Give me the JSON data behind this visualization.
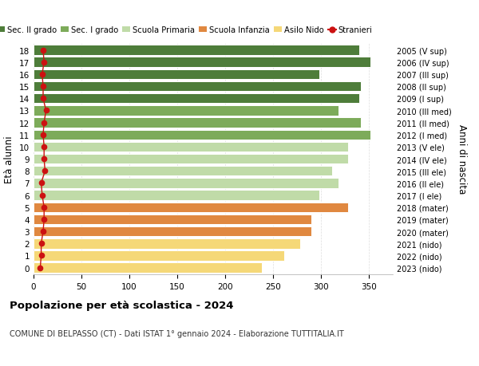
{
  "ages": [
    18,
    17,
    16,
    15,
    14,
    13,
    12,
    11,
    10,
    9,
    8,
    7,
    6,
    5,
    4,
    3,
    2,
    1,
    0
  ],
  "years": [
    "2005 (V sup)",
    "2006 (IV sup)",
    "2007 (III sup)",
    "2008 (II sup)",
    "2009 (I sup)",
    "2010 (III med)",
    "2011 (II med)",
    "2012 (I med)",
    "2013 (V ele)",
    "2014 (IV ele)",
    "2015 (III ele)",
    "2016 (II ele)",
    "2017 (I ele)",
    "2018 (mater)",
    "2019 (mater)",
    "2020 (mater)",
    "2021 (nido)",
    "2022 (nido)",
    "2023 (nido)"
  ],
  "values": [
    340,
    352,
    298,
    342,
    340,
    318,
    342,
    352,
    328,
    328,
    312,
    318,
    298,
    328,
    290,
    290,
    278,
    262,
    238
  ],
  "stranieri": [
    10,
    11,
    9,
    10,
    10,
    13,
    11,
    10,
    11,
    11,
    12,
    8,
    9,
    11,
    11,
    10,
    8,
    8,
    7
  ],
  "bar_colors": [
    "#4e7d3a",
    "#4e7d3a",
    "#4e7d3a",
    "#4e7d3a",
    "#4e7d3a",
    "#7dab5a",
    "#7dab5a",
    "#7dab5a",
    "#c0dba8",
    "#c0dba8",
    "#c0dba8",
    "#c0dba8",
    "#c0dba8",
    "#e08840",
    "#e08840",
    "#e08840",
    "#f5d878",
    "#f5d878",
    "#f5d878"
  ],
  "legend_labels": [
    "Sec. II grado",
    "Sec. I grado",
    "Scuola Primaria",
    "Scuola Infanzia",
    "Asilo Nido",
    "Stranieri"
  ],
  "legend_colors": [
    "#4e7d3a",
    "#7dab5a",
    "#c0dba8",
    "#e08840",
    "#f5d878",
    "#cc1111"
  ],
  "title": "Popolazione per età scolastica - 2024",
  "subtitle": "COMUNE DI BELPASSO (CT) - Dati ISTAT 1° gennaio 2024 - Elaborazione TUTTITALIA.IT",
  "ylabel_left": "Età alunni",
  "ylabel_right": "Anni di nascita",
  "xlim": [
    0,
    375
  ],
  "xticks": [
    0,
    50,
    100,
    150,
    200,
    250,
    300,
    350
  ],
  "stranieri_color": "#cc1111",
  "bg_color": "#ffffff",
  "bar_height": 0.82
}
